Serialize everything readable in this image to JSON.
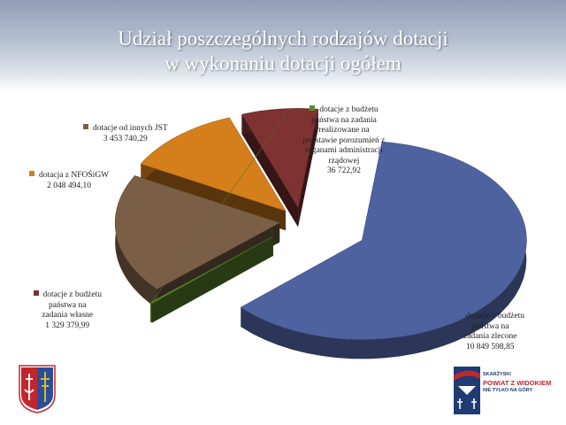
{
  "slide": {
    "title_line1": "Udział poszczególnych rodzajów dotacji",
    "title_line2": "w wykonaniu dotacji ogółem"
  },
  "chart_data": {
    "type": "pie",
    "exploded": true,
    "three_d": true,
    "slices": [
      {
        "key": "zlecone",
        "label_lines": [
          "dotacje z budżetu",
          "państwa na",
          "zadania zlecone"
        ],
        "value_text": "10 849 598,85",
        "value": 10849598.85,
        "color": "#4f62a0"
      },
      {
        "key": "porozumienia",
        "label_lines": [
          "dotacje z budżetu",
          "państwa na zadania",
          "realizowane na",
          "podstawie porozumień z",
          "organami administracji",
          "rządowej"
        ],
        "value_text": "36 722,92",
        "value": 36722.92,
        "color": "#5c8a2e"
      },
      {
        "key": "inne_jst",
        "label_lines": [
          "dotacje od innych JST"
        ],
        "value_text": "3 453 740,29",
        "value": 3453740.29,
        "color": "#7a5f46"
      },
      {
        "key": "nfosigw",
        "label_lines": [
          "dotacja z NFOŚiGW"
        ],
        "value_text": "2 048 494,10",
        "value": 2048494.1,
        "color": "#d57f1c"
      },
      {
        "key": "wlasne",
        "label_lines": [
          "dotacje z budżetu",
          "państwa na",
          "zadania własne"
        ],
        "value_text": "1 329 379,99",
        "value": 1329379.99,
        "color": "#7e3232"
      }
    ]
  },
  "footer": {
    "brand_line1": "SKARŻYSKI",
    "brand_line2": "POWIAT Z WIDOKIEM",
    "brand_line3": "NIE TYLKO NA GÓRY"
  }
}
